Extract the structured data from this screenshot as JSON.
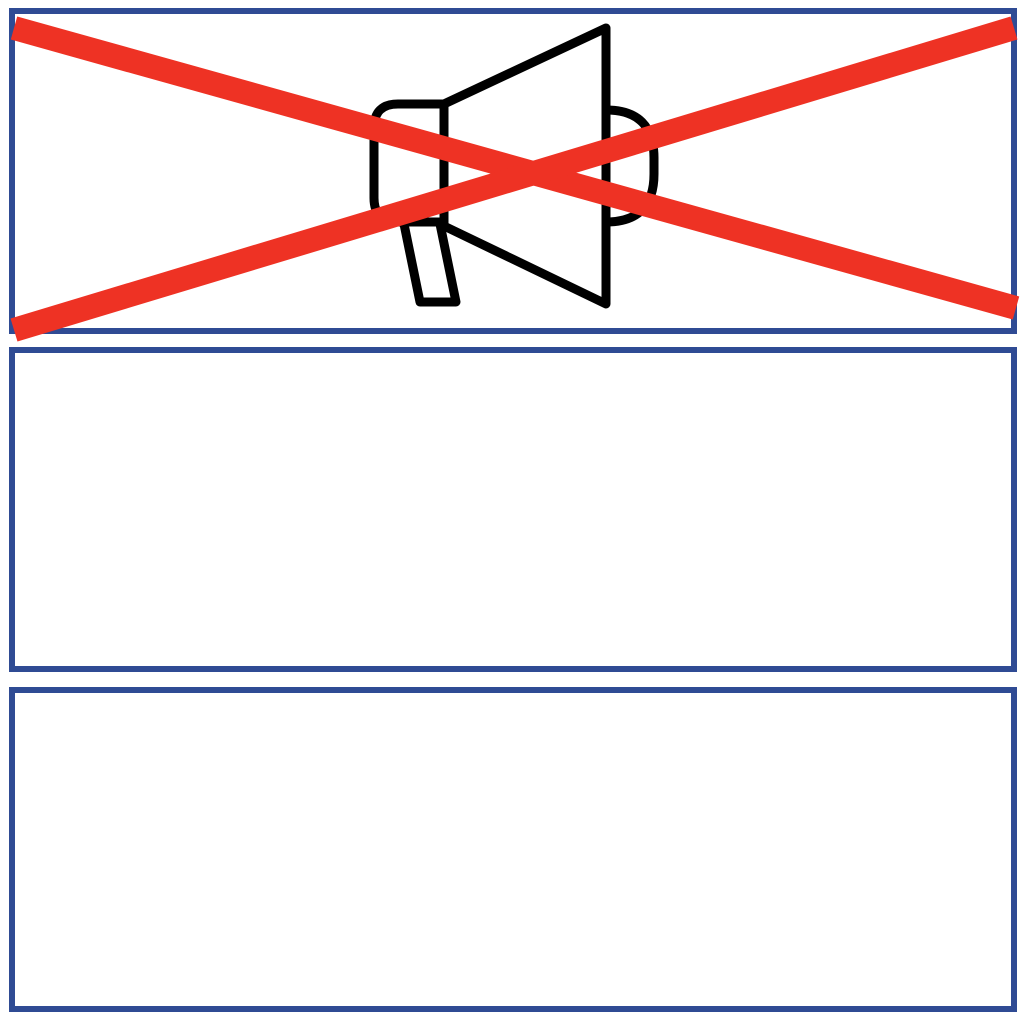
{
  "panels": [
    {
      "id": "panel-1",
      "icon": "megaphone-icon",
      "crossed_out": true
    },
    {
      "id": "panel-2",
      "icon": null,
      "crossed_out": false
    },
    {
      "id": "panel-3",
      "icon": null,
      "crossed_out": false
    }
  ],
  "colors": {
    "panel_border": "#2f4b94",
    "icon_stroke": "#000000",
    "cross": "#ee3224",
    "background": "#ffffff"
  }
}
